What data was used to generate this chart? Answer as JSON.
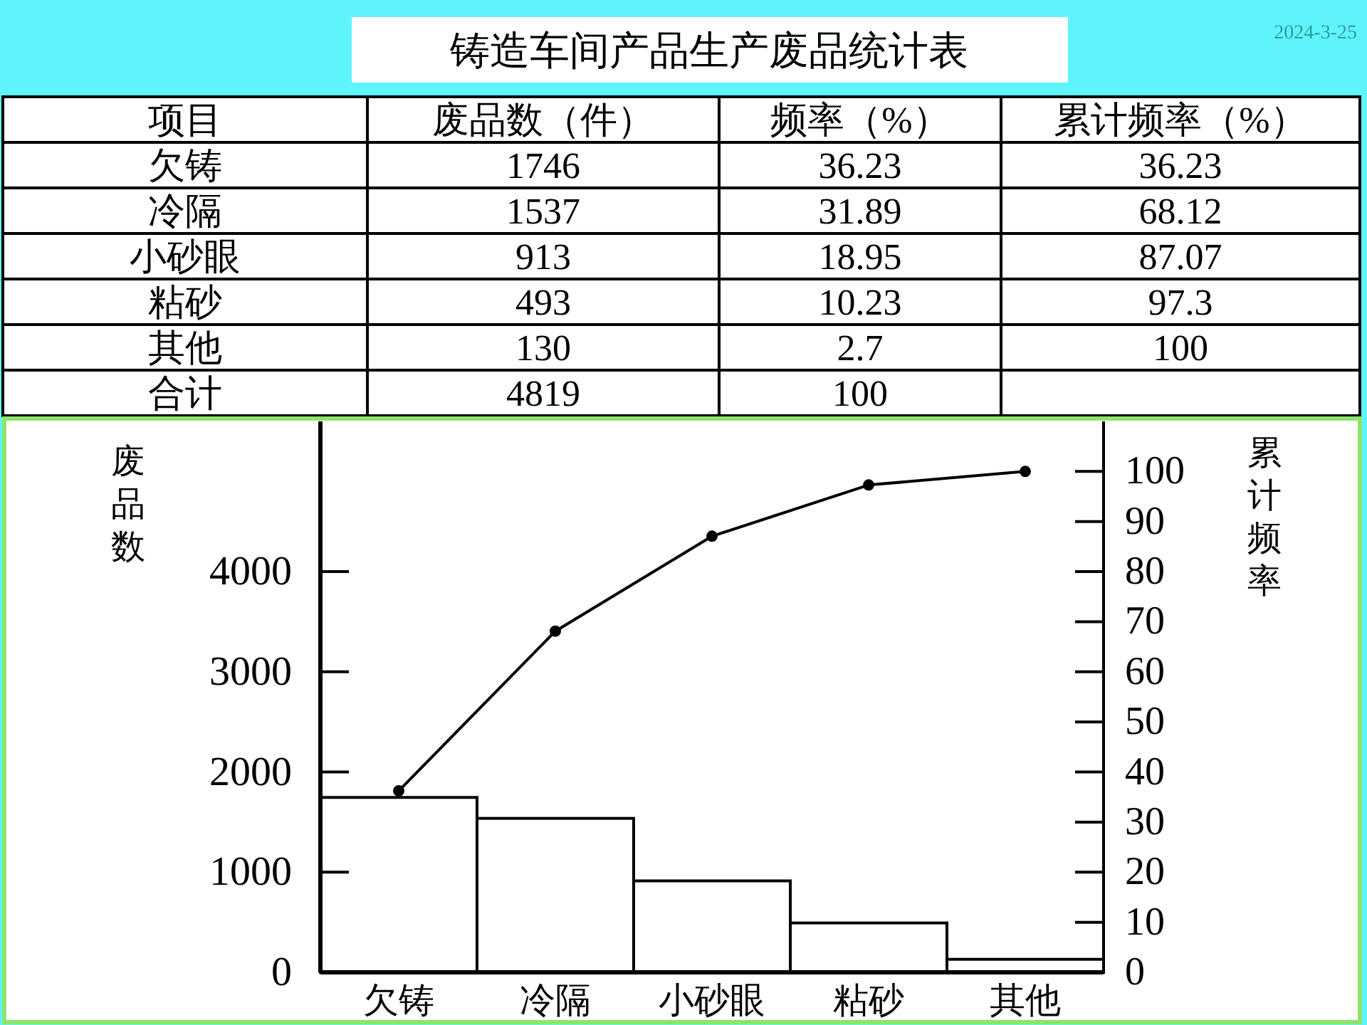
{
  "chart_data": [
    {
      "type": "heatmap",
      "title": "铸造车间产品生产废品统计表",
      "ylabel": "项目",
      "annotations": [
        "2024-3-25"
      ],
      "categories": [
        "废品数（件）",
        "频率（%）",
        "累计频率（%）"
      ],
      "y_categories": [
        "欠铸",
        "冷隔",
        "小砂眼",
        "粘砂",
        "其他",
        "合计"
      ],
      "cells": [
        [
          1746,
          36.23,
          36.23
        ],
        [
          1537,
          31.89,
          68.12
        ],
        [
          913,
          18.95,
          87.07
        ],
        [
          493,
          10.23,
          97.3
        ],
        [
          130,
          2.7,
          100
        ],
        [
          4819,
          100,
          null
        ]
      ],
      "cell_labels": [
        [
          "1746",
          "36.23",
          "36.23"
        ],
        [
          "1537",
          "31.89",
          "68.12"
        ],
        [
          "913",
          "18.95",
          "87.07"
        ],
        [
          "493",
          "10.23",
          "97.3"
        ],
        [
          "130",
          "2.7",
          "100"
        ],
        [
          "4819",
          "100",
          null
        ]
      ]
    },
    {
      "type": "bar",
      "categories": [
        "欠铸",
        "冷隔",
        "小砂眼",
        "粘砂",
        "其他"
      ],
      "ylabel": "废品数",
      "y2label": "累计频率",
      "ylim": [
        0,
        5500
      ],
      "yticks": [
        0,
        1000,
        2000,
        3000,
        4000
      ],
      "y2lim": [
        0,
        110
      ],
      "y2ticks": [
        0,
        10,
        20,
        30,
        40,
        50,
        60,
        70,
        80,
        90,
        100
      ],
      "marker": "circle",
      "series": [
        {
          "type": "bar",
          "color": "#ffffff",
          "values": [
            1746,
            1537,
            913,
            493,
            130
          ]
        },
        {
          "type": "line",
          "axis": "y2",
          "color": "#000000",
          "values": [
            36.23,
            68.12,
            87.07,
            97.3,
            100
          ]
        }
      ]
    }
  ]
}
